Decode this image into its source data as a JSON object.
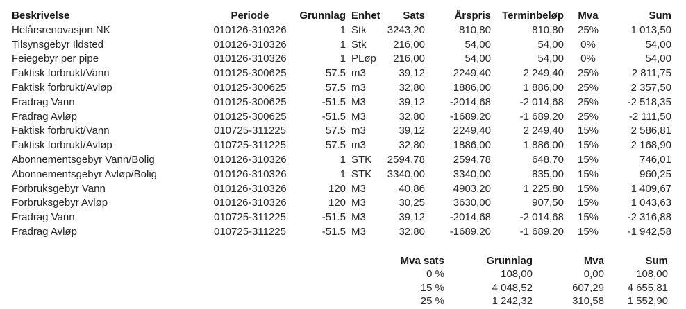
{
  "table": {
    "columns": [
      "Beskrivelse",
      "Periode",
      "Grunnlag",
      "Enhet",
      "Sats",
      "Årspris",
      "Terminbeløp",
      "Mva",
      "Sum"
    ],
    "rows": [
      [
        "Helårsrenovasjon NK",
        "010126-310326",
        "1",
        "Stk",
        "3243,20",
        "810,80",
        "810,80",
        "25%",
        "1 013,50"
      ],
      [
        "Tilsynsgebyr Ildsted",
        "010126-310326",
        "1",
        "Stk",
        "216,00",
        "54,00",
        "54,00",
        "0%",
        "54,00"
      ],
      [
        "Feiegebyr per pipe",
        "010126-310326",
        "1",
        "PLøp",
        "216,00",
        "54,00",
        "54,00",
        "0%",
        "54,00"
      ],
      [
        "Faktisk forbrukt/Vann",
        "010125-300625",
        "57.5",
        "m3",
        "39,12",
        "2249,40",
        "2 249,40",
        "25%",
        "2 811,75"
      ],
      [
        "Faktisk forbrukt/Avløp",
        "010125-300625",
        "57.5",
        "m3",
        "32,80",
        "1886,00",
        "1 886,00",
        "25%",
        "2 357,50"
      ],
      [
        "Fradrag Vann",
        "010125-300625",
        "-51.5",
        "M3",
        "39,12",
        "-2014,68",
        "-2 014,68",
        "25%",
        "-2 518,35"
      ],
      [
        "Fradrag Avløp",
        "010125-300625",
        "-51.5",
        "M3",
        "32,80",
        "-1689,20",
        "-1 689,20",
        "25%",
        "-2 111,50"
      ],
      [
        "Faktisk forbrukt/Vann",
        "010725-311225",
        "57.5",
        "m3",
        "39,12",
        "2249,40",
        "2 249,40",
        "15%",
        "2 586,81"
      ],
      [
        "Faktisk forbrukt/Avløp",
        "010725-311225",
        "57.5",
        "m3",
        "32,80",
        "1886,00",
        "1 886,00",
        "15%",
        "2 168,90"
      ],
      [
        "Abonnementsgebyr Vann/Bolig",
        "010126-310326",
        "1",
        "STK",
        "2594,78",
        "2594,78",
        "648,70",
        "15%",
        "746,01"
      ],
      [
        "Abonnementsgebyr Avløp/Bolig",
        "010126-310326",
        "1",
        "STK",
        "3340,00",
        "3340,00",
        "835,00",
        "15%",
        "960,25"
      ],
      [
        "Forbruksgebyr Vann",
        "010126-310326",
        "120",
        "M3",
        "40,86",
        "4903,20",
        "1 225,80",
        "15%",
        "1 409,67"
      ],
      [
        "Forbruksgebyr Avløp",
        "010126-310326",
        "120",
        "M3",
        "30,25",
        "3630,00",
        "907,50",
        "15%",
        "1 043,63"
      ],
      [
        "Fradrag Vann",
        "010725-311225",
        "-51.5",
        "M3",
        "39,12",
        "-2014,68",
        "-2 014,68",
        "15%",
        "-2 316,88"
      ],
      [
        "Fradrag Avløp",
        "010725-311225",
        "-51.5",
        "M3",
        "32,80",
        "-1689,20",
        "-1 689,20",
        "15%",
        "-1 942,58"
      ]
    ]
  },
  "vat_summary": {
    "columns": [
      "Mva sats",
      "Grunnlag",
      "Mva",
      "Sum"
    ],
    "rows": [
      [
        "0 %",
        "108,00",
        "0,00",
        "108,00"
      ],
      [
        "15 %",
        "4 048,52",
        "607,29",
        "4 655,81"
      ],
      [
        "25 %",
        "1 242,32",
        "310,58",
        "1 552,90"
      ]
    ]
  }
}
